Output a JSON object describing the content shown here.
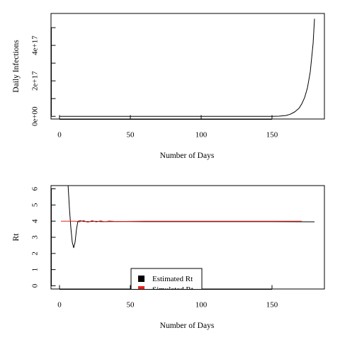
{
  "chart_data": [
    {
      "type": "line",
      "xlabel": "Number of Days",
      "ylabel": "Daily Infections",
      "xlim": [
        -6,
        187
      ],
      "ylim": [
        -1.5e+16,
        5.8e+17
      ],
      "x_ticks": [
        0,
        50,
        100,
        150
      ],
      "x_tick_labels": [
        "0",
        "50",
        "100",
        "150"
      ],
      "y_ticks": [
        0,
        2e+17,
        4e+17
      ],
      "y_tick_labels": [
        "0e+00",
        "2e+17",
        "4e+17"
      ],
      "y_minor_ticks": [
        1e+17,
        3e+17,
        5e+17
      ],
      "grid": false,
      "series": [
        {
          "color": "#000000",
          "x": [
            0,
            50,
            100,
            140,
            150,
            155,
            160,
            163,
            166,
            169,
            171,
            173,
            175,
            177,
            179,
            180
          ],
          "y": [
            0,
            0,
            0,
            0,
            200000000000000.0,
            1000000000000000.0,
            5000000000000000.0,
            1.2e+16,
            2.5e+16,
            4.5e+16,
            7e+16,
            1.05e+17,
            1.6e+17,
            2.5e+17,
            4.1e+17,
            5.5e+17
          ]
        }
      ]
    },
    {
      "type": "line",
      "xlabel": "Number of Days",
      "ylabel": "Rt",
      "xlim": [
        -6,
        187
      ],
      "ylim": [
        -0.2,
        6.2
      ],
      "x_ticks": [
        0,
        50,
        100,
        150
      ],
      "x_tick_labels": [
        "0",
        "50",
        "100",
        "150"
      ],
      "y_ticks": [
        0,
        1,
        2,
        3,
        4,
        5,
        6
      ],
      "y_tick_labels": [
        "0",
        "1",
        "2",
        "3",
        "4",
        "5",
        "6"
      ],
      "grid": false,
      "legend_position": "bottom-center",
      "series": [
        {
          "name": "Estimated Rt",
          "color": "#000000",
          "x": [
            6,
            7,
            8,
            9,
            10,
            11,
            12,
            13,
            15,
            17,
            20,
            25,
            30,
            40,
            60,
            100,
            150,
            180
          ],
          "y": [
            6.3,
            4.8,
            3.6,
            2.7,
            2.35,
            2.7,
            3.5,
            4.0,
            4.02,
            3.98,
            3.97,
            3.99,
            3.97,
            3.98,
            3.97,
            3.97,
            3.97,
            3.96
          ]
        },
        {
          "name": "Simulated Rt",
          "color": "#e8201e",
          "x": [
            1,
            10,
            11,
            14,
            17,
            20,
            23,
            26,
            29,
            32,
            35,
            40,
            60,
            100,
            150,
            171
          ],
          "y": [
            4.0,
            4.0,
            4.0,
            3.95,
            4.04,
            3.93,
            4.03,
            3.95,
            4.02,
            3.96,
            4.01,
            3.98,
            4.0,
            4.0,
            4.0,
            4.0
          ]
        }
      ]
    }
  ]
}
